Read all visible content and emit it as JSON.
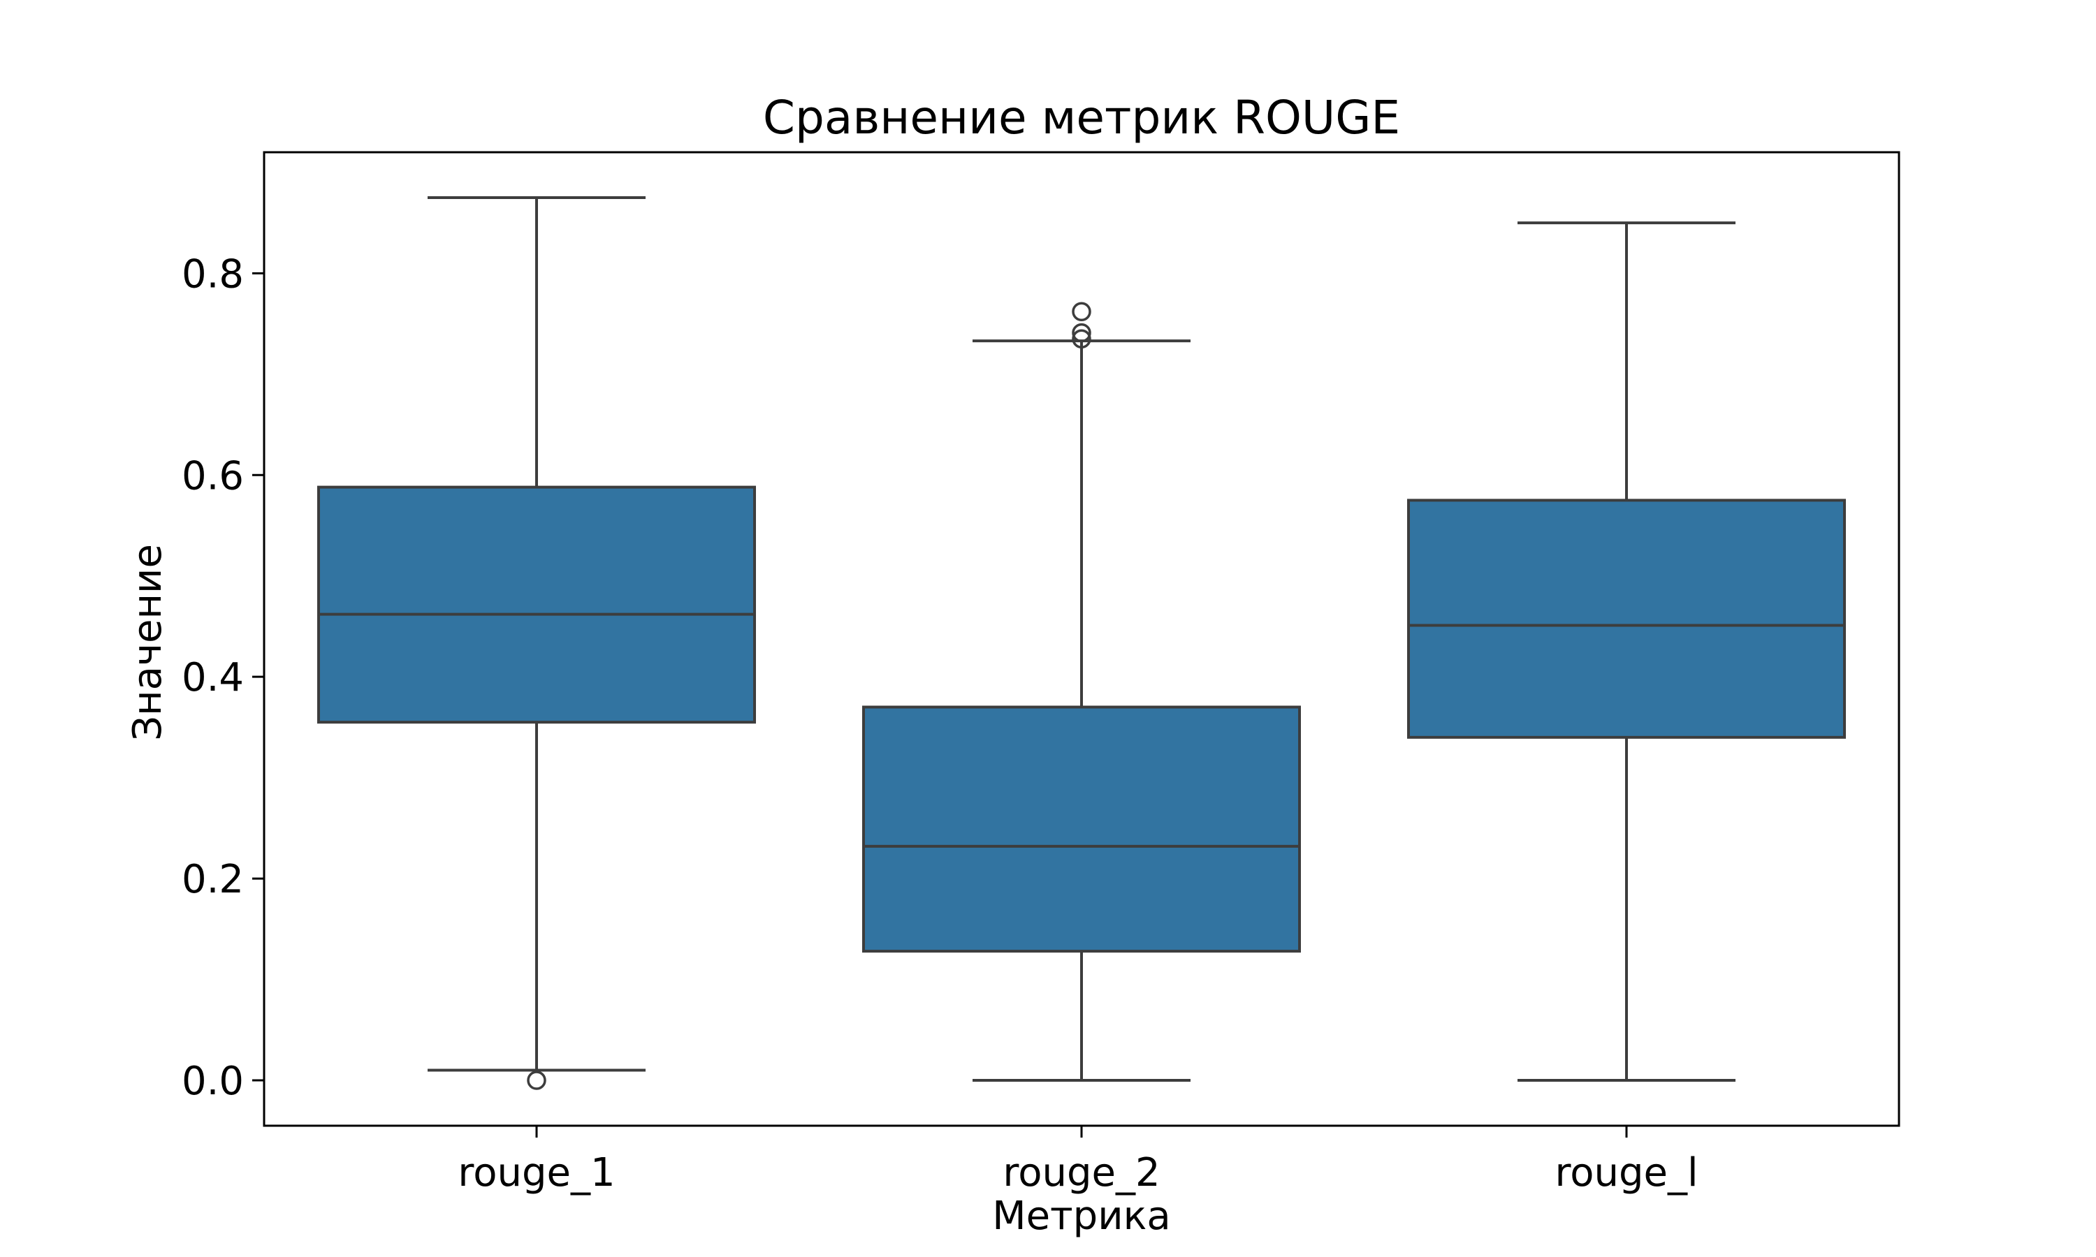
{
  "chart_data": {
    "type": "box",
    "title": "Сравнение метрик ROUGE",
    "xlabel": "Метрика",
    "ylabel": "Значение",
    "ylim": [
      -0.045,
      0.92
    ],
    "yticks": [
      "0.0",
      "0.2",
      "0.4",
      "0.6",
      "0.8"
    ],
    "categories": [
      "rouge_1",
      "rouge_2",
      "rouge_l"
    ],
    "boxes": [
      {
        "name": "rouge_1",
        "whisker_low": 0.01,
        "q1": 0.355,
        "median": 0.462,
        "q3": 0.588,
        "whisker_high": 0.875,
        "outliers": [
          0.0
        ]
      },
      {
        "name": "rouge_2",
        "whisker_low": 0.0,
        "q1": 0.128,
        "median": 0.232,
        "q3": 0.37,
        "whisker_high": 0.733,
        "outliers": [
          0.762,
          0.741,
          0.735
        ]
      },
      {
        "name": "rouge_l",
        "whisker_low": 0.0,
        "q1": 0.34,
        "median": 0.451,
        "q3": 0.575,
        "whisker_high": 0.85,
        "outliers": []
      }
    ],
    "box_color": "#3274a1",
    "line_color": "#3d3d3d",
    "grid": false,
    "legend": "none"
  }
}
